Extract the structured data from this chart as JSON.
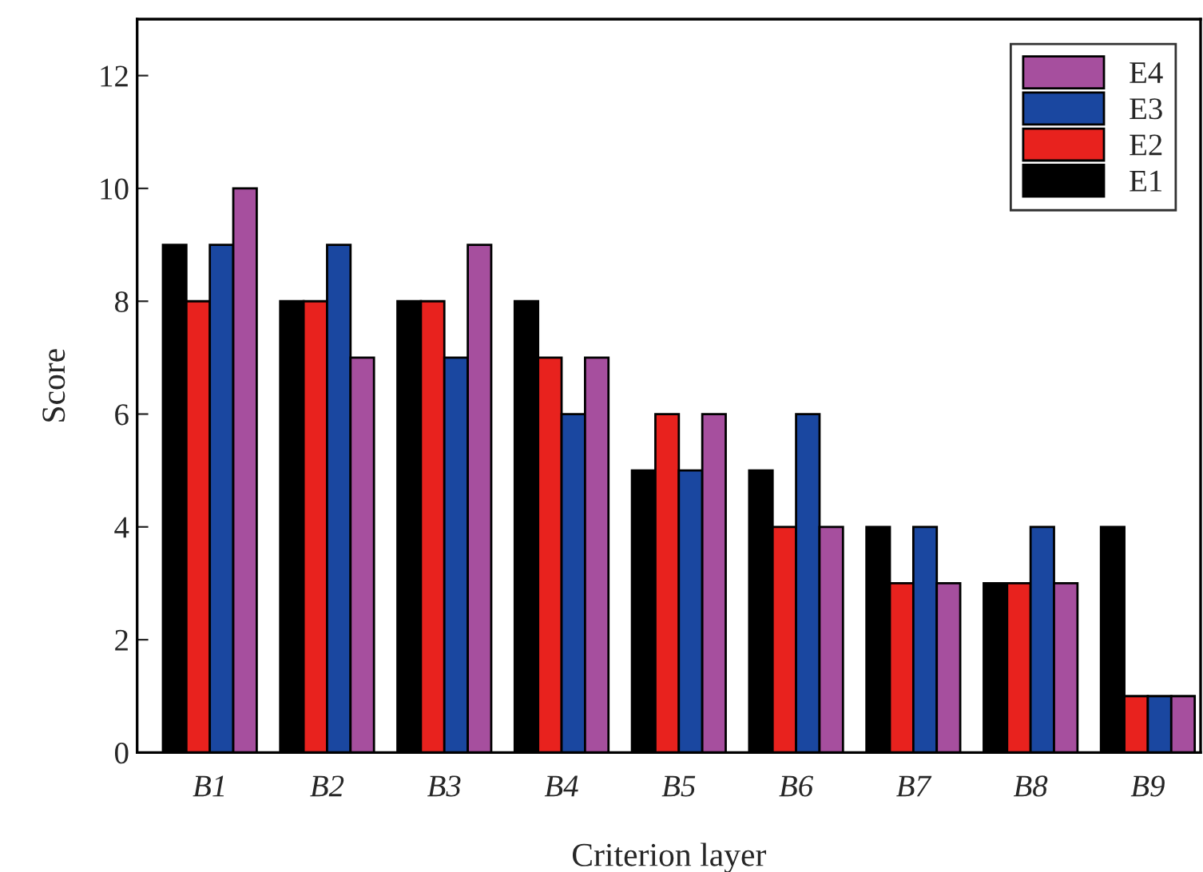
{
  "chart_data": {
    "type": "bar",
    "xlabel": "Criterion layer",
    "ylabel": "Score",
    "categories": [
      "B1",
      "B2",
      "B3",
      "B4",
      "B5",
      "B6",
      "B7",
      "B8",
      "B9"
    ],
    "series": [
      {
        "name": "E1",
        "color": "#000000",
        "values": [
          9,
          8,
          8,
          8,
          5,
          5,
          4,
          3,
          4
        ]
      },
      {
        "name": "E2",
        "color": "#e8221e",
        "values": [
          8,
          8,
          8,
          7,
          6,
          4,
          3,
          3,
          1
        ]
      },
      {
        "name": "E3",
        "color": "#1a47a0",
        "values": [
          9,
          9,
          7,
          6,
          5,
          6,
          4,
          4,
          1
        ]
      },
      {
        "name": "E4",
        "color": "#a64f9e",
        "values": [
          10,
          7,
          9,
          7,
          6,
          4,
          3,
          3,
          1
        ]
      }
    ],
    "ylim": [
      0,
      13
    ],
    "yticks": [
      0,
      2,
      4,
      6,
      8,
      10,
      12
    ],
    "grid": false,
    "legend": "top right"
  }
}
